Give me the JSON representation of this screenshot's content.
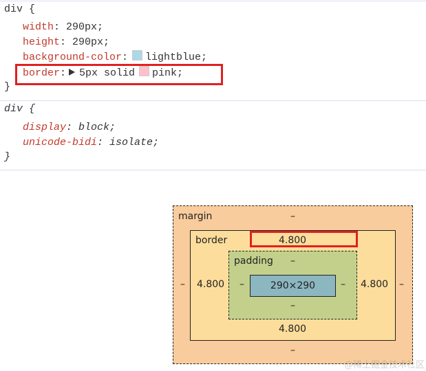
{
  "rule1": {
    "selector": "div",
    "open": "{",
    "close": "}",
    "decls": [
      {
        "prop": "width",
        "value": "290px;"
      },
      {
        "prop": "height",
        "value": "290px;"
      },
      {
        "prop": "background-color",
        "value": "lightblue;",
        "swatch": "#add8e6"
      },
      {
        "prop": "border",
        "value": "5px solid",
        "value2": "pink;",
        "swatch": "#ffc0cb"
      }
    ]
  },
  "rule2": {
    "selector": "div",
    "open": "{",
    "close": "}",
    "decls": [
      {
        "prop": "display",
        "value": "block;"
      },
      {
        "prop": "unicode-bidi",
        "value": "isolate;"
      }
    ]
  },
  "box_model": {
    "margin": {
      "label": "margin",
      "top": "–",
      "right": "–",
      "bottom": "–",
      "left": "–",
      "color": "#f9cc9d"
    },
    "border": {
      "label": "border",
      "top": "4.800",
      "right": "4.800",
      "bottom": "4.800",
      "left": "4.800",
      "color": "#fddd9b"
    },
    "padding": {
      "label": "padding",
      "top": "–",
      "right": "–",
      "bottom": "–",
      "left": "–",
      "color": "#c3d08b"
    },
    "content": {
      "size": "290×290",
      "color": "#8cb6c0"
    }
  },
  "highlight_color": "#e02020",
  "watermark": "@稀土掘金技术社区"
}
